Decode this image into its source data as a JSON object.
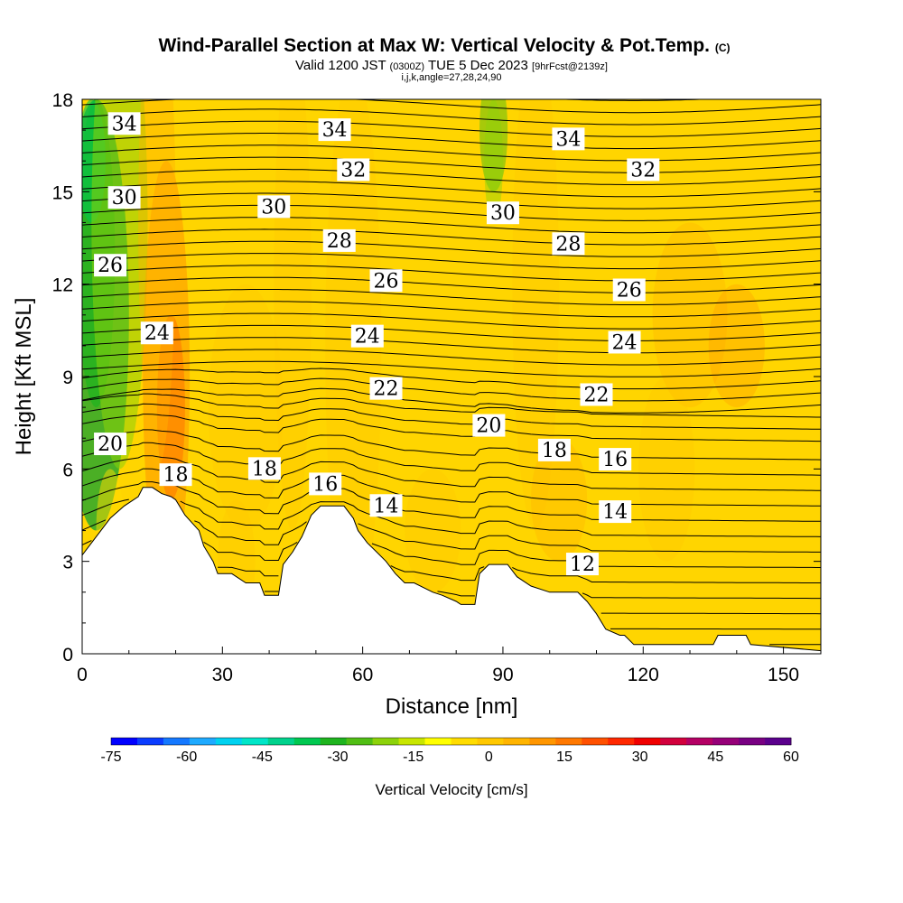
{
  "header": {
    "title": "Wind-Parallel Section at Max W: Vertical Velocity & Pot.Temp.",
    "title_mark": "(C)",
    "valid_prefix": "Valid 1200 JST",
    "valid_utc": "(0300Z)",
    "valid_date": "TUE 5 Dec 2023",
    "forecast": "[9hrFcst@2139z]",
    "indices": "i,j,k,angle=27,28,24,90"
  },
  "chart_data": {
    "type": "heatmap",
    "xlabel": "Distance [nm]",
    "ylabel": "Height [Kft MSL]",
    "xlim": [
      0,
      158
    ],
    "ylim": [
      0,
      18
    ],
    "x_ticks": [
      "0",
      "30",
      "60",
      "90",
      "120",
      "150"
    ],
    "x_tick_values": [
      0,
      30,
      60,
      90,
      120,
      150
    ],
    "y_ticks": [
      "0",
      "3",
      "6",
      "9",
      "12",
      "15",
      "18"
    ],
    "y_tick_values": [
      0,
      3,
      6,
      9,
      12,
      15,
      18
    ],
    "background_field": "Vertical Velocity [cm/s]",
    "terrain_profile_kft": [
      [
        0,
        3.2
      ],
      [
        3,
        3.8
      ],
      [
        6,
        4.4
      ],
      [
        9,
        4.8
      ],
      [
        12,
        5.1
      ],
      [
        13,
        5.4
      ],
      [
        15,
        5.4
      ],
      [
        17,
        5.2
      ],
      [
        19,
        5.1
      ],
      [
        20,
        5.0
      ],
      [
        22,
        4.5
      ],
      [
        25,
        4.0
      ],
      [
        26,
        3.5
      ],
      [
        28,
        3.0
      ],
      [
        29,
        2.6
      ],
      [
        32,
        2.6
      ],
      [
        35,
        2.3
      ],
      [
        38,
        2.3
      ],
      [
        39,
        1.9
      ],
      [
        42,
        1.9
      ],
      [
        43,
        2.9
      ],
      [
        45,
        3.3
      ],
      [
        47,
        3.8
      ],
      [
        49,
        4.5
      ],
      [
        51,
        4.8
      ],
      [
        56,
        4.8
      ],
      [
        58,
        4.4
      ],
      [
        59,
        4.0
      ],
      [
        61,
        3.6
      ],
      [
        63,
        3.3
      ],
      [
        65,
        3.0
      ],
      [
        67,
        2.6
      ],
      [
        69,
        2.3
      ],
      [
        71,
        2.3
      ],
      [
        75,
        2.0
      ],
      [
        77,
        1.9
      ],
      [
        80,
        1.7
      ],
      [
        81,
        1.6
      ],
      [
        84,
        1.6
      ],
      [
        85,
        2.6
      ],
      [
        87,
        2.9
      ],
      [
        91,
        2.9
      ],
      [
        93,
        2.5
      ],
      [
        96,
        2.2
      ],
      [
        100,
        2.0
      ],
      [
        106,
        2.0
      ],
      [
        108,
        1.7
      ],
      [
        110,
        1.3
      ],
      [
        112,
        0.8
      ],
      [
        115,
        0.6
      ],
      [
        116,
        0.6
      ],
      [
        118,
        0.3
      ],
      [
        135,
        0.3
      ],
      [
        136,
        0.6
      ],
      [
        142,
        0.6
      ],
      [
        143,
        0.3
      ],
      [
        158,
        0.1
      ]
    ],
    "theta_contour_labels": [
      {
        "value": "34",
        "x": 9,
        "y": 17.2
      },
      {
        "value": "34",
        "x": 54,
        "y": 17.0
      },
      {
        "value": "34",
        "x": 104,
        "y": 16.7
      },
      {
        "value": "32",
        "x": 58,
        "y": 15.7
      },
      {
        "value": "32",
        "x": 120,
        "y": 15.7
      },
      {
        "value": "30",
        "x": 9,
        "y": 14.8
      },
      {
        "value": "30",
        "x": 41,
        "y": 14.5
      },
      {
        "value": "30",
        "x": 90,
        "y": 14.3
      },
      {
        "value": "28",
        "x": 55,
        "y": 13.4
      },
      {
        "value": "28",
        "x": 104,
        "y": 13.3
      },
      {
        "value": "26",
        "x": 6,
        "y": 12.6
      },
      {
        "value": "26",
        "x": 65,
        "y": 12.1
      },
      {
        "value": "26",
        "x": 117,
        "y": 11.8
      },
      {
        "value": "24",
        "x": 16,
        "y": 10.4
      },
      {
        "value": "24",
        "x": 61,
        "y": 10.3
      },
      {
        "value": "24",
        "x": 116,
        "y": 10.1
      },
      {
        "value": "22",
        "x": 65,
        "y": 8.6
      },
      {
        "value": "22",
        "x": 110,
        "y": 8.4
      },
      {
        "value": "20",
        "x": 6,
        "y": 6.8
      },
      {
        "value": "20",
        "x": 87,
        "y": 7.4
      },
      {
        "value": "18",
        "x": 20,
        "y": 5.8
      },
      {
        "value": "18",
        "x": 39,
        "y": 6.0
      },
      {
        "value": "18",
        "x": 101,
        "y": 6.6
      },
      {
        "value": "16",
        "x": 52,
        "y": 5.5
      },
      {
        "value": "16",
        "x": 114,
        "y": 6.3
      },
      {
        "value": "14",
        "x": 65,
        "y": 4.8
      },
      {
        "value": "14",
        "x": 114,
        "y": 4.6
      },
      {
        "value": "12",
        "x": 107,
        "y": 2.9
      }
    ],
    "colorbar": {
      "label": "Vertical Velocity [cm/s]",
      "tick_labels": [
        "-75",
        "-60",
        "-45",
        "-30",
        "-15",
        "0",
        "15",
        "30",
        "45",
        "60"
      ],
      "tick_values": [
        -75,
        -60,
        -45,
        -30,
        -15,
        0,
        15,
        30,
        45,
        60
      ],
      "colors": [
        "#0000ff",
        "#0a3cff",
        "#1478ff",
        "#1eaaff",
        "#00d2f0",
        "#00e6c8",
        "#00d28c",
        "#00c850",
        "#1eb41e",
        "#50be14",
        "#8cd20a",
        "#c8e600",
        "#ffff00",
        "#ffdc00",
        "#ffc800",
        "#ffb400",
        "#ff9600",
        "#ff7800",
        "#ff5000",
        "#ff2800",
        "#f00000",
        "#d2003c",
        "#b40064",
        "#960078",
        "#780082",
        "#5a008c"
      ]
    }
  }
}
